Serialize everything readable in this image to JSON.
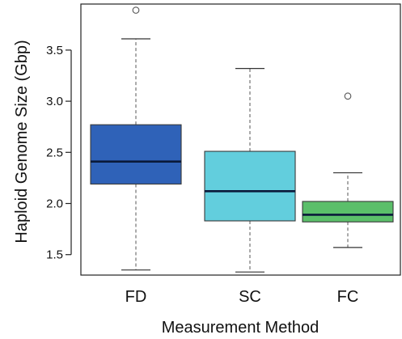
{
  "chart_data": {
    "type": "box",
    "title": "",
    "xlabel": "Measurement Method",
    "ylabel": "Haploid Genome Size (Gbp)",
    "ylim": [
      1.3,
      3.95
    ],
    "yticks": [
      1.5,
      2.0,
      2.5,
      3.0,
      3.5
    ],
    "ytick_labels": [
      "1.5",
      "2.0",
      "2.5",
      "3.0",
      "3.5"
    ],
    "grid": false,
    "categories": [
      "FD",
      "SC",
      "FC"
    ],
    "boxes": [
      {
        "category": "FD",
        "whisker_low": 1.35,
        "q1": 2.19,
        "median": 2.41,
        "q3": 2.77,
        "whisker_high": 3.61,
        "outliers": [
          3.89
        ],
        "color": "#2f62b8"
      },
      {
        "category": "SC",
        "whisker_low": 1.33,
        "q1": 1.83,
        "median": 2.12,
        "q3": 2.51,
        "whisker_high": 3.32,
        "outliers": [],
        "color": "#62cedd"
      },
      {
        "category": "FC",
        "whisker_low": 1.57,
        "q1": 1.82,
        "median": 1.89,
        "q3": 2.02,
        "whisker_high": 2.3,
        "outliers": [
          3.05
        ],
        "color": "#5bbf6a"
      }
    ]
  }
}
